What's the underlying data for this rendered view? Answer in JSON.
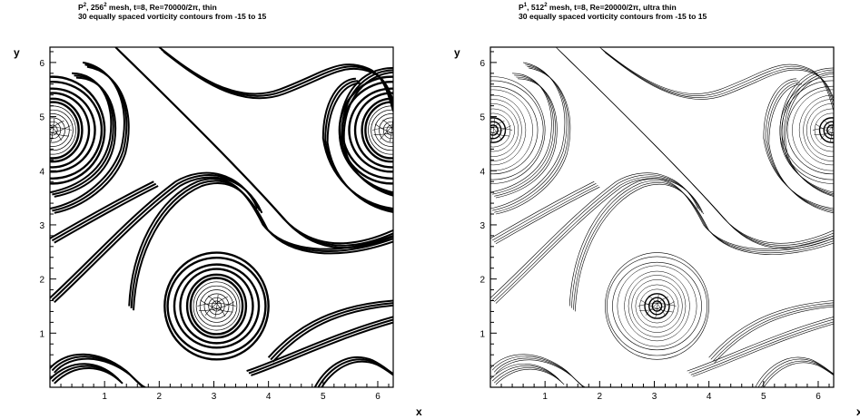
{
  "panels": [
    {
      "id": "left",
      "title_prefix": "P",
      "title_prefix_sup": "2",
      "title_mesh": ", 256",
      "title_mesh_sup": "2",
      "title_rest": " mesh, t=8,  Re=70000/2π, thin",
      "subtitle": "30 equally spaced vorticity contours from -15 to 15",
      "xlabel": "x",
      "ylabel": "y"
    },
    {
      "id": "right",
      "title_prefix": "P",
      "title_prefix_sup": "1",
      "title_mesh": ", 512",
      "title_mesh_sup": "2",
      "title_rest": " mesh, t=8,  Re=20000/2π, ultra thin",
      "subtitle": "30 equally spaced vorticity contours from -15 to 15",
      "xlabel": "x",
      "ylabel": "y"
    }
  ],
  "axis": {
    "xlim": [
      0,
      6.283
    ],
    "ylim": [
      0,
      6.283
    ],
    "xticks": [
      "1",
      "2",
      "3",
      "4",
      "5",
      "6"
    ],
    "yticks": [
      "1",
      "2",
      "3",
      "4",
      "5",
      "6"
    ]
  }
}
